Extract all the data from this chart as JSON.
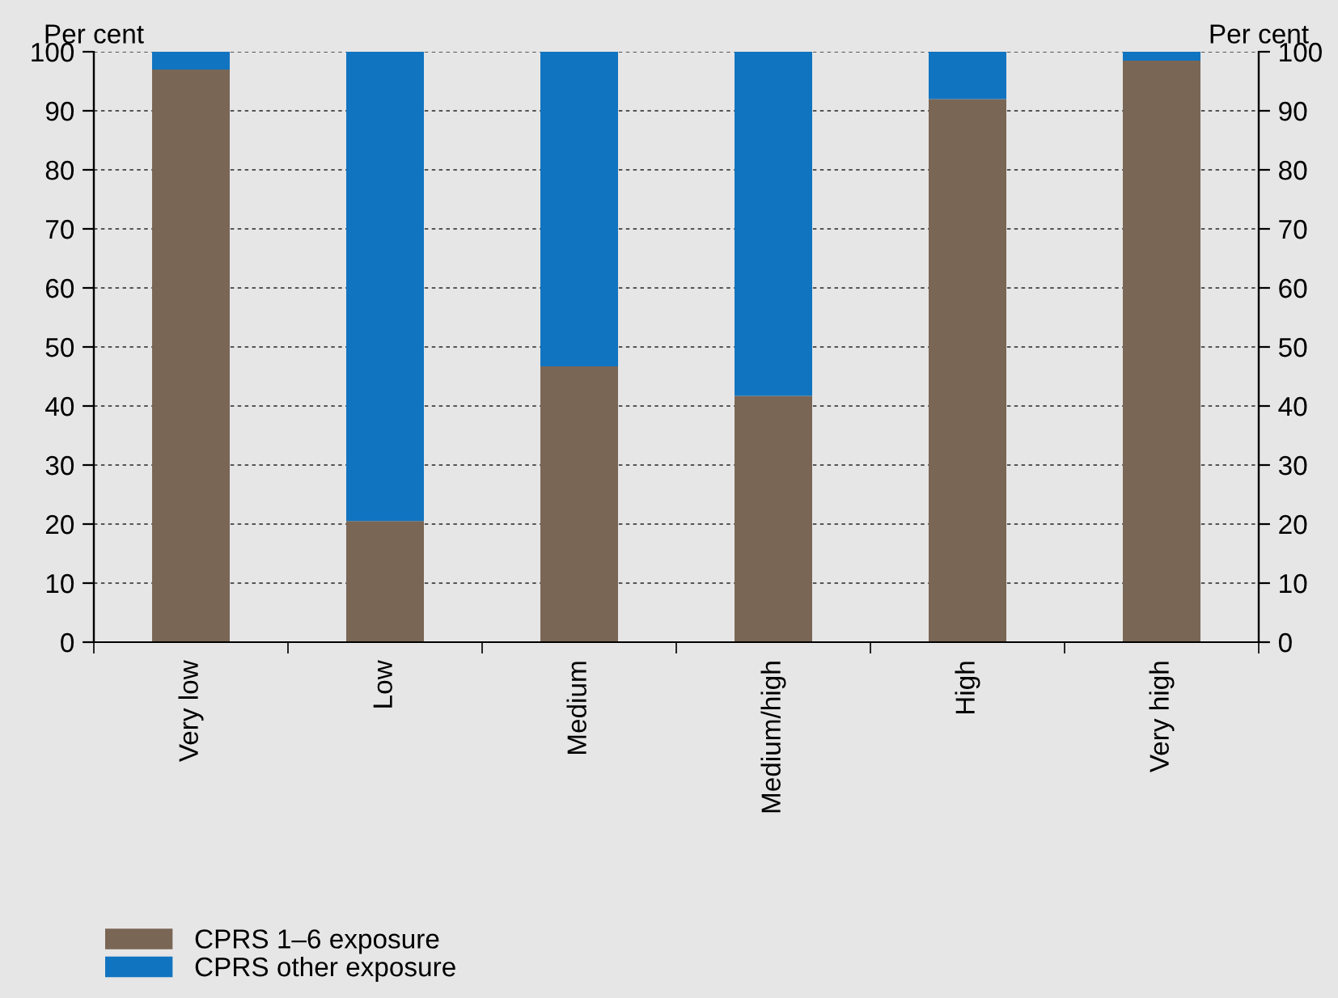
{
  "chart_data": {
    "type": "bar",
    "stacked": true,
    "ylabel": "Per cent",
    "y2label": "Per cent",
    "categories": [
      "Very low",
      "Low",
      "Medium",
      "Medium/high",
      "High",
      "Very high"
    ],
    "series": [
      {
        "name": "CPRS 1–6 exposure",
        "color": "#7a6655",
        "values": [
          97,
          20.5,
          46.7,
          41.7,
          92,
          98.5
        ]
      },
      {
        "name": "CPRS other exposure",
        "color": "#1174c0",
        "values": [
          3,
          79.5,
          53.3,
          58.3,
          8,
          1.5
        ]
      }
    ],
    "ylim": [
      0,
      100
    ],
    "yticks": [
      0,
      10,
      20,
      30,
      40,
      50,
      60,
      70,
      80,
      90,
      100
    ],
    "y2lim": [
      0,
      100
    ],
    "y2ticks": [
      0,
      10,
      20,
      30,
      40,
      50,
      60,
      70,
      80,
      90,
      100
    ],
    "grid": "y",
    "legend": "bottom left"
  }
}
